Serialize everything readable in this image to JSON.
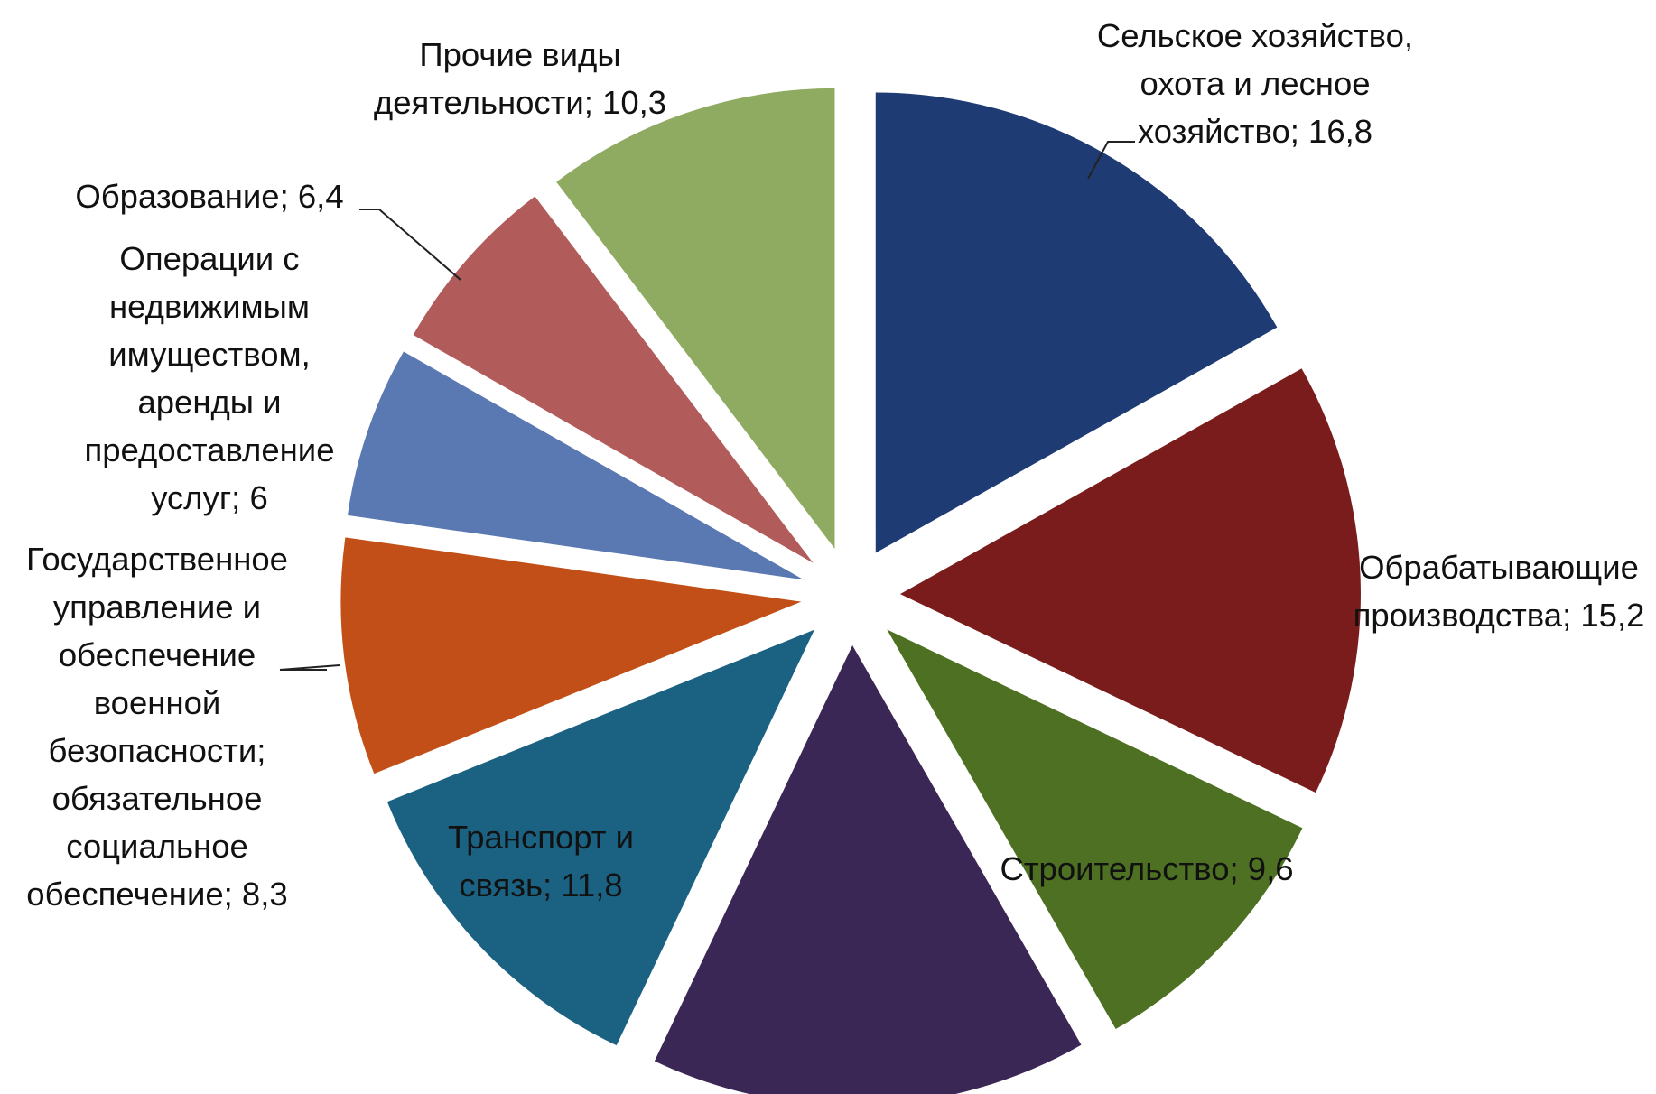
{
  "chart_data": {
    "type": "pie",
    "exploded": true,
    "legend": "none",
    "start_angle_deg": 0,
    "direction": "clockwise",
    "slices": [
      {
        "label": "Сельское хозяйство, охота и лесное хозяйство",
        "value": 16.8,
        "value_text": "16,8",
        "color": "#1f3b74"
      },
      {
        "label": "Обрабатывающие производства",
        "value": 15.2,
        "value_text": "15,2",
        "color": "#7a1c1c"
      },
      {
        "label": "Строительство",
        "value": 9.6,
        "value_text": "9,6",
        "color": "#4d7022"
      },
      {
        "label": "",
        "value": 15.3,
        "value_text": "",
        "color": "#3b2755"
      },
      {
        "label": "Транспорт и связь",
        "value": 11.8,
        "value_text": "11,8",
        "color": "#1b6282"
      },
      {
        "label": "Государственное управление и обеспечение военной безопасности; обязательное социальное обеспечение",
        "value": 8.3,
        "value_text": "8,3",
        "color": "#c24f17"
      },
      {
        "label": "Операции с недвижимым имуществом, аренды и предоставление услуг",
        "value": 6,
        "value_text": "6",
        "color": "#5a78b1"
      },
      {
        "label": "Образование",
        "value": 6.4,
        "value_text": "6,4",
        "color": "#b15b5a"
      },
      {
        "label": "Прочие виды деятельности",
        "value": 10.3,
        "value_text": "10,3",
        "color": "#8fab62"
      }
    ],
    "data_labels": [
      {
        "lines": [
          "Сельское хозяйство,",
          "охота и лесное",
          "хозяйство; 16,8"
        ]
      },
      {
        "lines": [
          "Обрабатывающие",
          "производства; 15,2"
        ]
      },
      {
        "lines": [
          "Строительство; 9,6"
        ]
      },
      {
        "lines": []
      },
      {
        "lines": [
          "Транспорт и",
          "связь; 11,8"
        ]
      },
      {
        "lines": [
          "Государственное",
          "управление и",
          "обеспечение",
          "военной",
          "безопасности;",
          "обязательное",
          "социальное",
          "обеспечение;  8,3"
        ]
      },
      {
        "lines": [
          "Операции с",
          "недвижимым",
          "имуществом,",
          "аренды и",
          "предоставление",
          "услуг; 6"
        ]
      },
      {
        "lines": [
          "Образование; 6,4"
        ]
      },
      {
        "lines": [
          "Прочие виды",
          "деятельности; 10,3"
        ]
      }
    ]
  }
}
